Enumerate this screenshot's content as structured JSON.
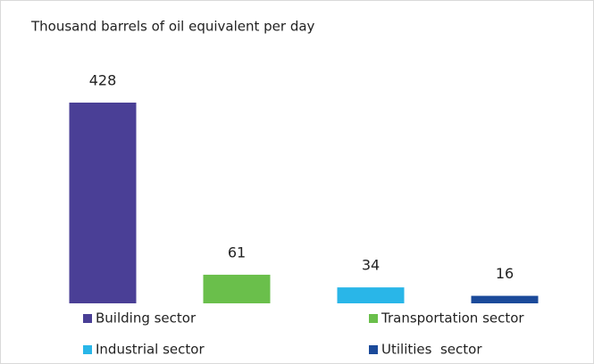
{
  "chart_data": {
    "type": "bar",
    "title": "Thousand barrels of oil equivalent per day",
    "categories": [
      "Building sector",
      "Transportation sector",
      "Industrial sector",
      "Utilities  sector"
    ],
    "values": [
      428,
      61,
      34,
      16
    ],
    "colors": [
      "#4a3f96",
      "#6abf4b",
      "#29b6e8",
      "#1b4a9a"
    ],
    "legend": "bottom"
  }
}
